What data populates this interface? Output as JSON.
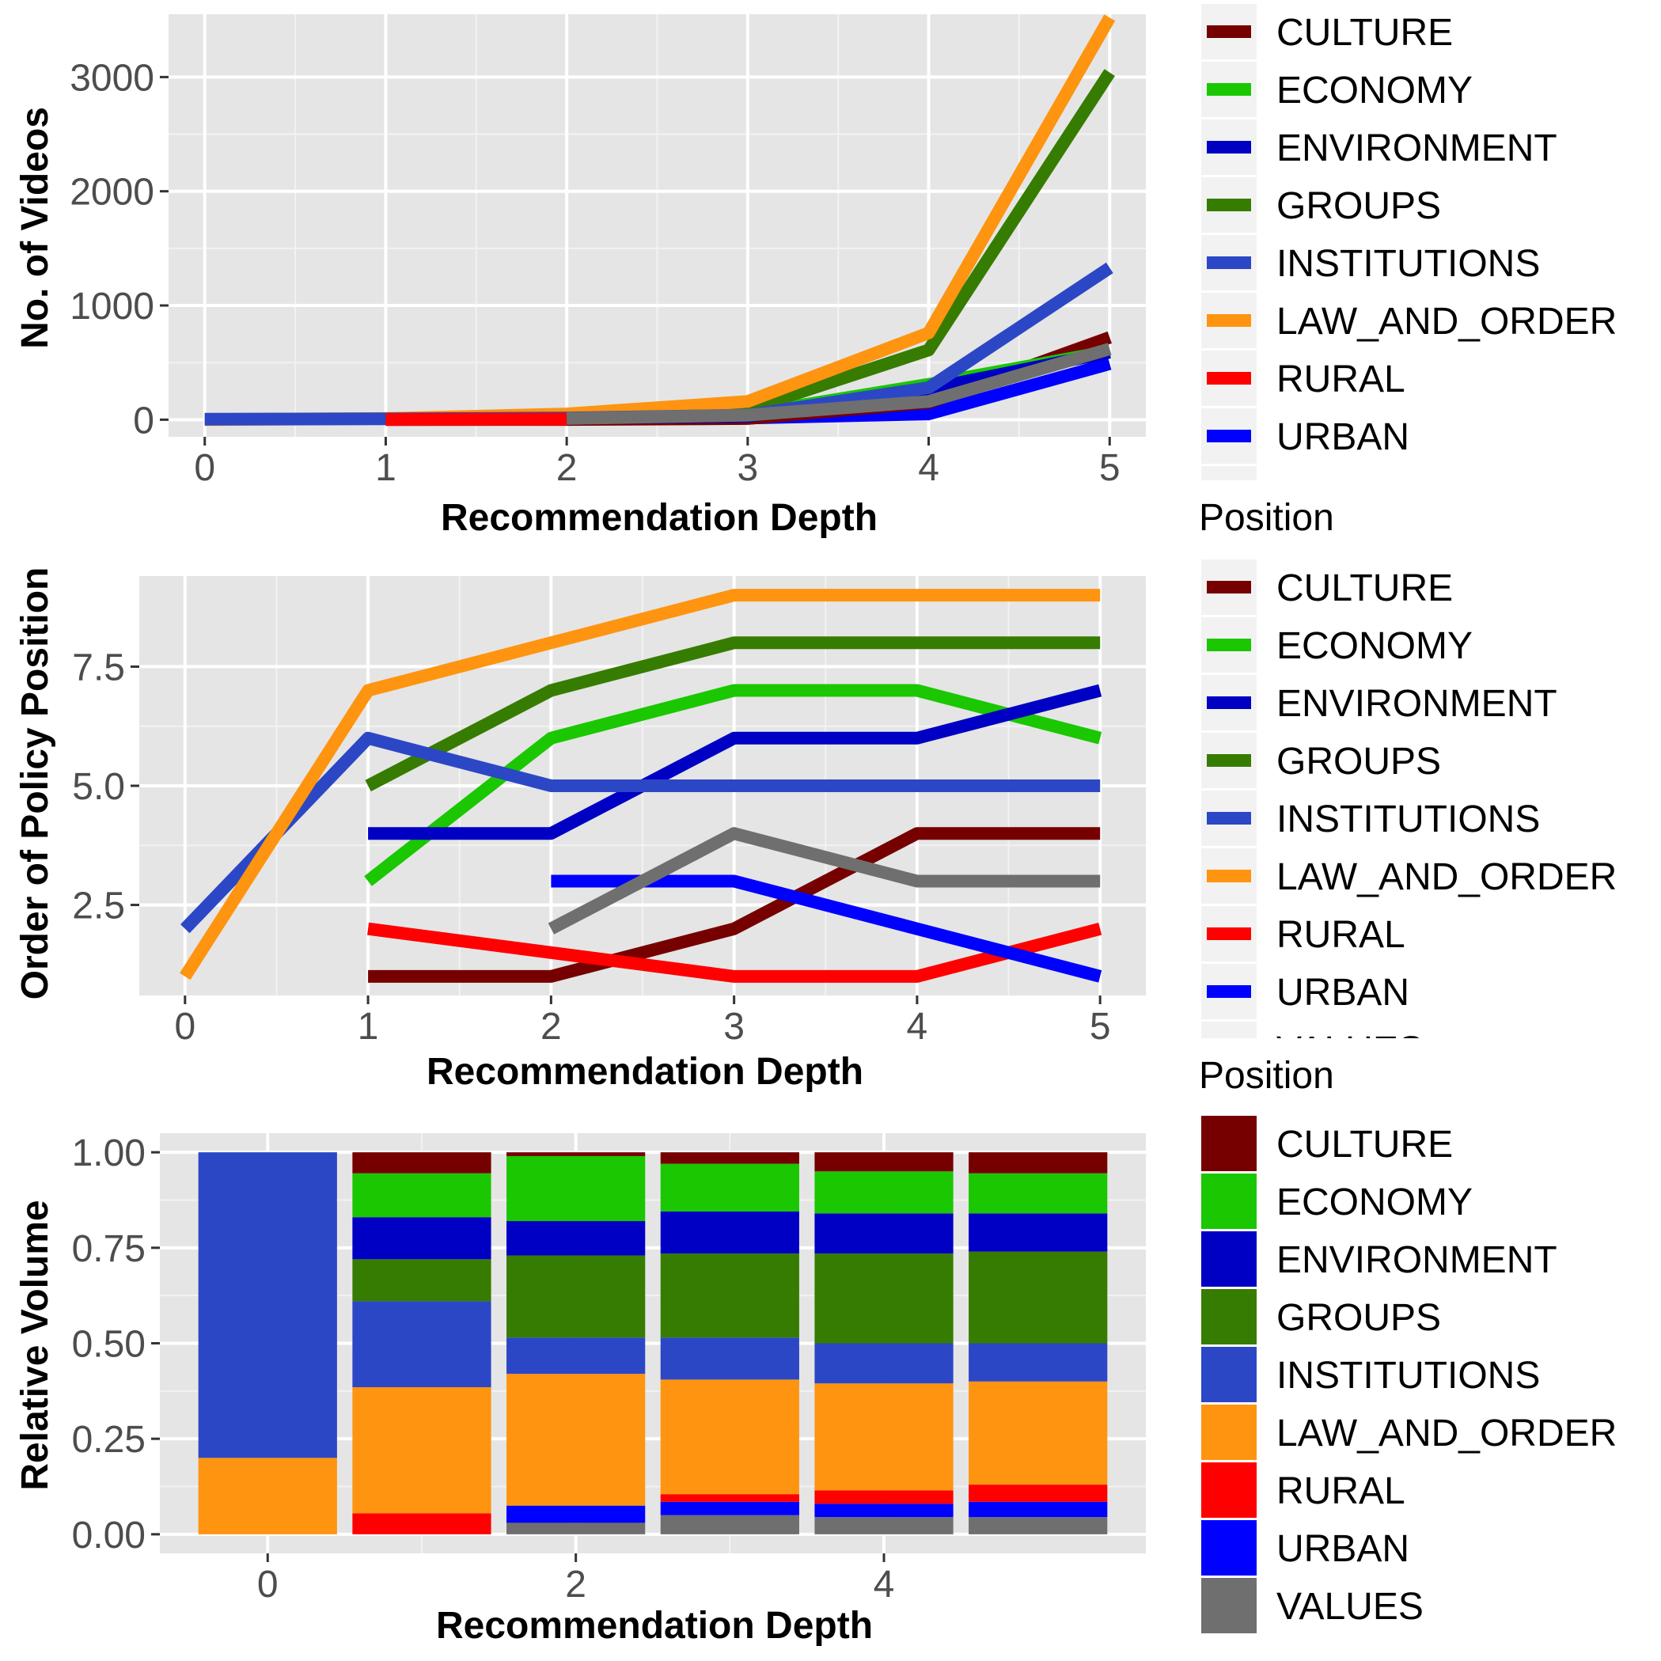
{
  "colors": {
    "CULTURE": "#760000",
    "ECONOMY": "#1ac700",
    "ENVIRONMENT": "#0000c4",
    "GROUPS": "#367c00",
    "INSTITUTIONS": "#2c47c5",
    "LAW_AND_ORDER": "#fe9410",
    "RURAL": "#fe0000",
    "URBAN": "#0000fe",
    "VALUES": "#6f6f6f"
  },
  "chart_data": [
    {
      "type": "line",
      "xlabel": "Recommendation Depth",
      "ylabel": "No. of Videos",
      "xlim": [
        -0.2,
        5.2
      ],
      "ylim": [
        -150,
        3550
      ],
      "xticks": [
        "0",
        "1",
        "2",
        "3",
        "4",
        "5"
      ],
      "yticks": [
        {
          "value": 0,
          "label": "0"
        },
        {
          "value": 1000,
          "label": "1000"
        },
        {
          "value": 2000,
          "label": "2000"
        },
        {
          "value": 3000,
          "label": "3000"
        }
      ],
      "legend": {
        "title": "",
        "position": "right",
        "entries": [
          "CULTURE",
          "ECONOMY",
          "ENVIRONMENT",
          "GROUPS",
          "INSTITUTIONS",
          "LAW_AND_ORDER",
          "RURAL",
          "URBAN",
          "VALUES"
        ],
        "truncated_label": "VALUES"
      },
      "series": [
        {
          "name": "URBAN",
          "x": [
            2,
            3,
            4,
            5
          ],
          "y": [
            5,
            15,
            50,
            490
          ]
        },
        {
          "name": "CULTURE",
          "x": [
            1,
            2,
            3,
            4,
            5
          ],
          "y": [
            1,
            2,
            10,
            150,
            720
          ]
        },
        {
          "name": "ECONOMY",
          "x": [
            1,
            2,
            3,
            4,
            5
          ],
          "y": [
            3,
            25,
            50,
            310,
            600
          ]
        },
        {
          "name": "ENVIRONMENT",
          "x": [
            1,
            2,
            3,
            4,
            5
          ],
          "y": [
            4,
            15,
            30,
            270,
            590
          ]
        },
        {
          "name": "GROUPS",
          "x": [
            1,
            2,
            3,
            4,
            5
          ],
          "y": [
            5,
            30,
            90,
            610,
            3040
          ]
        },
        {
          "name": "LAW_AND_ORDER",
          "x": [
            0,
            1,
            2,
            3,
            4,
            5
          ],
          "y": [
            1,
            10,
            50,
            160,
            760,
            3520
          ]
        },
        {
          "name": "INSTITUTIONS",
          "x": [
            0,
            1,
            2,
            3,
            4,
            5
          ],
          "y": [
            4,
            7,
            15,
            40,
            280,
            1330
          ]
        },
        {
          "name": "RURAL",
          "x": [
            1,
            2
          ],
          "y": [
            2,
            5
          ]
        },
        {
          "name": "VALUES",
          "x": [
            2,
            3,
            4,
            5
          ],
          "y": [
            10,
            40,
            160,
            620
          ]
        }
      ]
    },
    {
      "type": "line",
      "xlabel": "Recommendation Depth",
      "ylabel": "Order of Policy Position",
      "xlim": [
        -0.25,
        5.25
      ],
      "ylim": [
        0.6,
        9.4
      ],
      "xticks": [
        "0",
        "1",
        "2",
        "3",
        "4",
        "5"
      ],
      "yticks": [
        {
          "value": 2.5,
          "label": "2.5"
        },
        {
          "value": 5.0,
          "label": "5.0"
        },
        {
          "value": 7.5,
          "label": "7.5"
        }
      ],
      "legend": {
        "title": "Position",
        "position": "right",
        "entries": [
          "CULTURE",
          "ECONOMY",
          "ENVIRONMENT",
          "GROUPS",
          "INSTITUTIONS",
          "LAW_AND_ORDER",
          "RURAL",
          "URBAN",
          "VALUES"
        ],
        "truncated_label": "VALUES"
      },
      "series": [
        {
          "name": "CULTURE",
          "x": [
            1,
            2,
            3,
            4,
            5
          ],
          "y": [
            1,
            1,
            2,
            4,
            4
          ]
        },
        {
          "name": "ECONOMY",
          "x": [
            1,
            2,
            3,
            4,
            5
          ],
          "y": [
            3,
            6,
            7,
            7,
            6
          ]
        },
        {
          "name": "ENVIRONMENT",
          "x": [
            1,
            2,
            3,
            4,
            5
          ],
          "y": [
            4,
            4,
            6,
            6,
            7
          ]
        },
        {
          "name": "GROUPS",
          "x": [
            1,
            2,
            3,
            4,
            5
          ],
          "y": [
            5,
            7,
            8,
            8,
            8
          ]
        },
        {
          "name": "INSTITUTIONS",
          "x": [
            0,
            1,
            2,
            3,
            4,
            5
          ],
          "y": [
            2,
            6,
            5,
            5,
            5,
            5
          ]
        },
        {
          "name": "LAW_AND_ORDER",
          "x": [
            0,
            1,
            2,
            3,
            4,
            5
          ],
          "y": [
            1,
            7,
            8,
            9,
            9,
            9
          ]
        },
        {
          "name": "RURAL",
          "x": [
            1,
            2,
            3,
            4,
            5
          ],
          "y": [
            2,
            1.5,
            1,
            1,
            2
          ]
        },
        {
          "name": "URBAN",
          "x": [
            2,
            3,
            4,
            5
          ],
          "y": [
            3,
            3,
            2,
            1
          ]
        },
        {
          "name": "VALUES",
          "x": [
            2,
            3,
            4,
            5
          ],
          "y": [
            2,
            4,
            3,
            3
          ]
        }
      ]
    },
    {
      "type": "bar",
      "stacked": true,
      "xlabel": "Recommendation Depth",
      "ylabel": "Relative Volume",
      "xlim": [
        -0.7,
        5.7
      ],
      "ylim": [
        -0.05,
        1.05
      ],
      "xticks": [
        {
          "value": 0,
          "label": "0"
        },
        {
          "value": 2,
          "label": "2"
        },
        {
          "value": 4,
          "label": "4"
        }
      ],
      "yticks": [
        {
          "value": 0.0,
          "label": "0.00"
        },
        {
          "value": 0.25,
          "label": "0.25"
        },
        {
          "value": 0.5,
          "label": "0.50"
        },
        {
          "value": 0.75,
          "label": "0.75"
        },
        {
          "value": 1.0,
          "label": "1.00"
        }
      ],
      "legend": {
        "title": "Position",
        "position": "right",
        "entries": [
          "CULTURE",
          "ECONOMY",
          "ENVIRONMENT",
          "GROUPS",
          "INSTITUTIONS",
          "LAW_AND_ORDER",
          "RURAL",
          "URBAN",
          "VALUES"
        ]
      },
      "categories": [
        0,
        1,
        2,
        3,
        4,
        5
      ],
      "stack_order_bottom_to_top": [
        "VALUES",
        "URBAN",
        "RURAL",
        "LAW_AND_ORDER",
        "INSTITUTIONS",
        "GROUPS",
        "ENVIRONMENT",
        "ECONOMY",
        "CULTURE"
      ],
      "series": [
        {
          "name": "VALUES",
          "values": [
            0,
            0,
            0.03,
            0.05,
            0.045,
            0.045
          ]
        },
        {
          "name": "URBAN",
          "values": [
            0,
            0,
            0.045,
            0.035,
            0.035,
            0.04
          ]
        },
        {
          "name": "RURAL",
          "values": [
            0,
            0.055,
            0,
            0.02,
            0.035,
            0.045
          ]
        },
        {
          "name": "LAW_AND_ORDER",
          "values": [
            0.2,
            0.33,
            0.345,
            0.3,
            0.28,
            0.27
          ]
        },
        {
          "name": "INSTITUTIONS",
          "values": [
            0.8,
            0.225,
            0.095,
            0.11,
            0.105,
            0.1
          ]
        },
        {
          "name": "GROUPS",
          "values": [
            0,
            0.11,
            0.215,
            0.22,
            0.235,
            0.24
          ]
        },
        {
          "name": "ENVIRONMENT",
          "values": [
            0,
            0.11,
            0.09,
            0.11,
            0.105,
            0.1
          ]
        },
        {
          "name": "ECONOMY",
          "values": [
            0,
            0.115,
            0.17,
            0.125,
            0.11,
            0.105
          ]
        },
        {
          "name": "CULTURE",
          "values": [
            0,
            0.055,
            0.01,
            0.03,
            0.05,
            0.055
          ]
        }
      ]
    }
  ]
}
